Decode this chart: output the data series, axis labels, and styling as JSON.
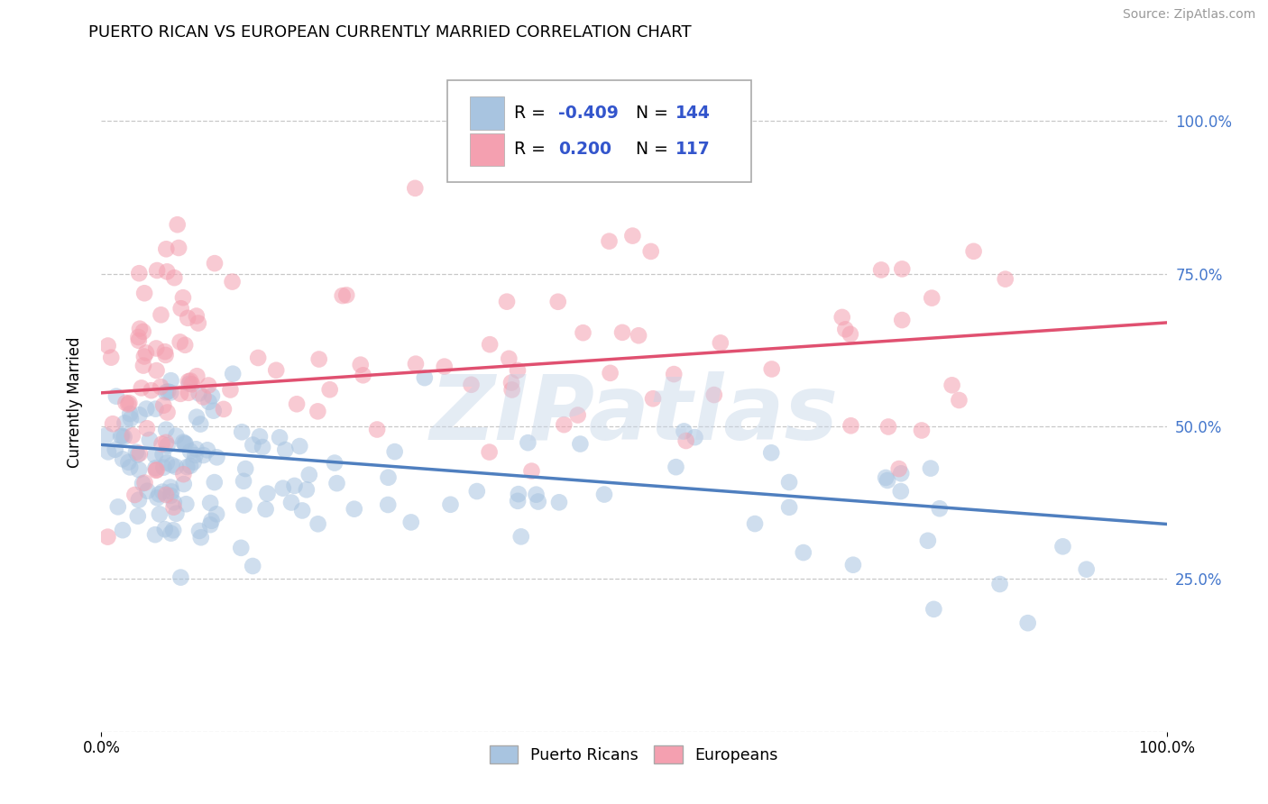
{
  "title": "PUERTO RICAN VS EUROPEAN CURRENTLY MARRIED CORRELATION CHART",
  "source": "Source: ZipAtlas.com",
  "ylabel": "Currently Married",
  "blue_R": -0.409,
  "blue_N": 144,
  "pink_R": 0.2,
  "pink_N": 117,
  "blue_color": "#a8c4e0",
  "pink_color": "#f4a0b0",
  "blue_line_color": "#4f7fbf",
  "pink_line_color": "#e05070",
  "watermark": "ZIPatlas",
  "background_color": "#ffffff",
  "grid_color": "#c8c8c8",
  "title_fontsize": 13,
  "source_fontsize": 10,
  "axis_label_fontsize": 12,
  "tick_fontsize": 12,
  "tick_color": "#4477cc",
  "blue_line_intercept": 0.47,
  "blue_line_slope": -0.13,
  "pink_line_intercept": 0.555,
  "pink_line_slope": 0.115
}
